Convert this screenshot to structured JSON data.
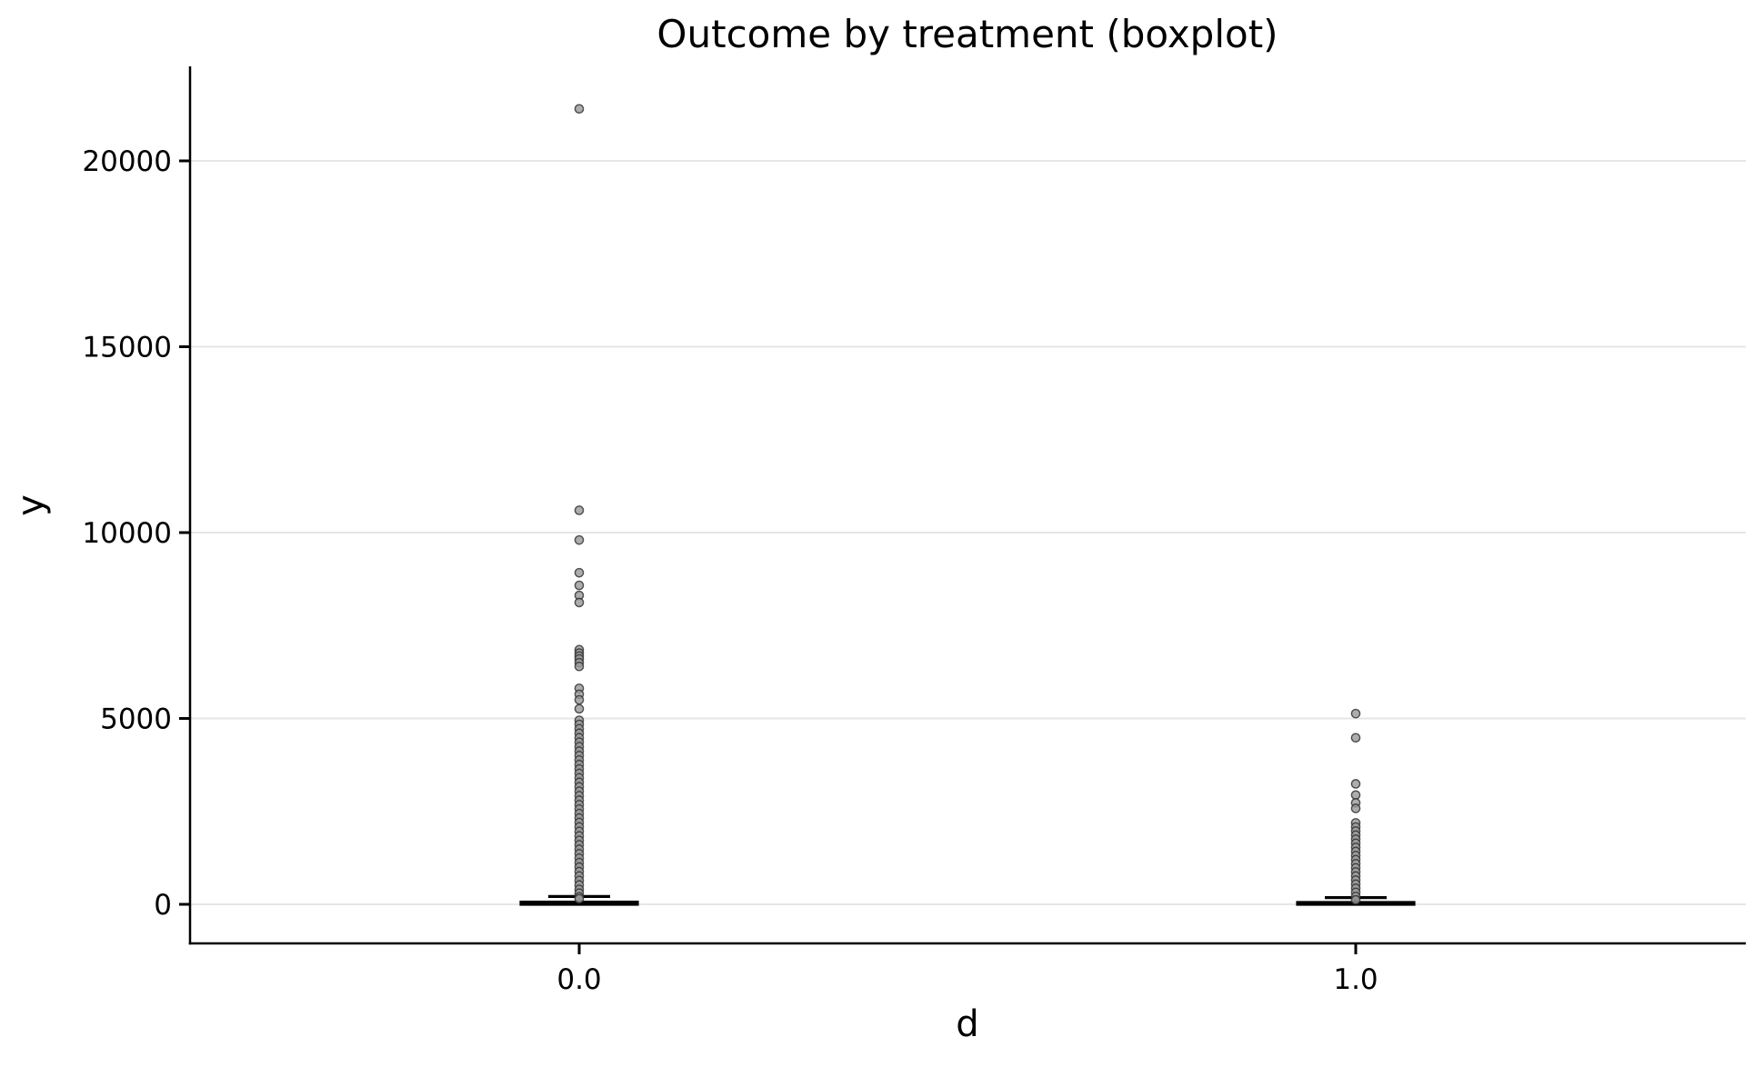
{
  "figure": {
    "background": "#ffffff"
  },
  "chart_data": {
    "type": "boxplot",
    "title": "Outcome by treatment (boxplot)",
    "xlabel": "d",
    "ylabel": "y",
    "categories": [
      "0.0",
      "1.0"
    ],
    "ytick_values": [
      0,
      5000,
      10000,
      15000,
      20000
    ],
    "ytick_labels": [
      "0",
      "5000",
      "10000",
      "15000",
      "20000"
    ],
    "ylim": [
      -1050,
      22550
    ],
    "grid": {
      "axis": "y",
      "on": true
    },
    "style": {
      "grid_color": "#e6e6e6",
      "spine_color": "#000000",
      "box_edge_color": "#000000",
      "flier_fill": "#999999",
      "flier_edge": "#333333",
      "text_color": "#000000"
    },
    "groups": [
      {
        "label": "0.0",
        "box_facecolor": "#a1c9f4",
        "box": {
          "whisker_low": 0,
          "q1": 0,
          "median": 15,
          "q3": 60,
          "whisker_high": 210
        },
        "outliers": [
          21400,
          10600,
          9800,
          8920,
          8580,
          8310,
          8120,
          6850,
          6760,
          6680,
          6600,
          6500,
          6400,
          5810,
          5650,
          5500,
          5260,
          4950,
          4840,
          4720,
          4600,
          4480,
          4360,
          4240,
          4120,
          4000,
          3880,
          3760,
          3640,
          3520,
          3400,
          3280,
          3160,
          3040,
          2920,
          2800,
          2680,
          2560,
          2440,
          2320,
          2200,
          2080,
          1960,
          1840,
          1720,
          1600,
          1480,
          1360,
          1240,
          1120,
          1000,
          880,
          760,
          640,
          520,
          400,
          300,
          200,
          150
        ]
      },
      {
        "label": "1.0",
        "box_facecolor": "#ffb482",
        "box": {
          "whisker_low": 0,
          "q1": 0,
          "median": 10,
          "q3": 50,
          "whisker_high": 180
        },
        "outliers": [
          5130,
          4480,
          3240,
          2940,
          2730,
          2580,
          2190,
          2080,
          1970,
          1860,
          1750,
          1640,
          1530,
          1420,
          1310,
          1200,
          1090,
          980,
          870,
          760,
          650,
          540,
          430,
          320,
          210,
          120
        ]
      }
    ]
  }
}
